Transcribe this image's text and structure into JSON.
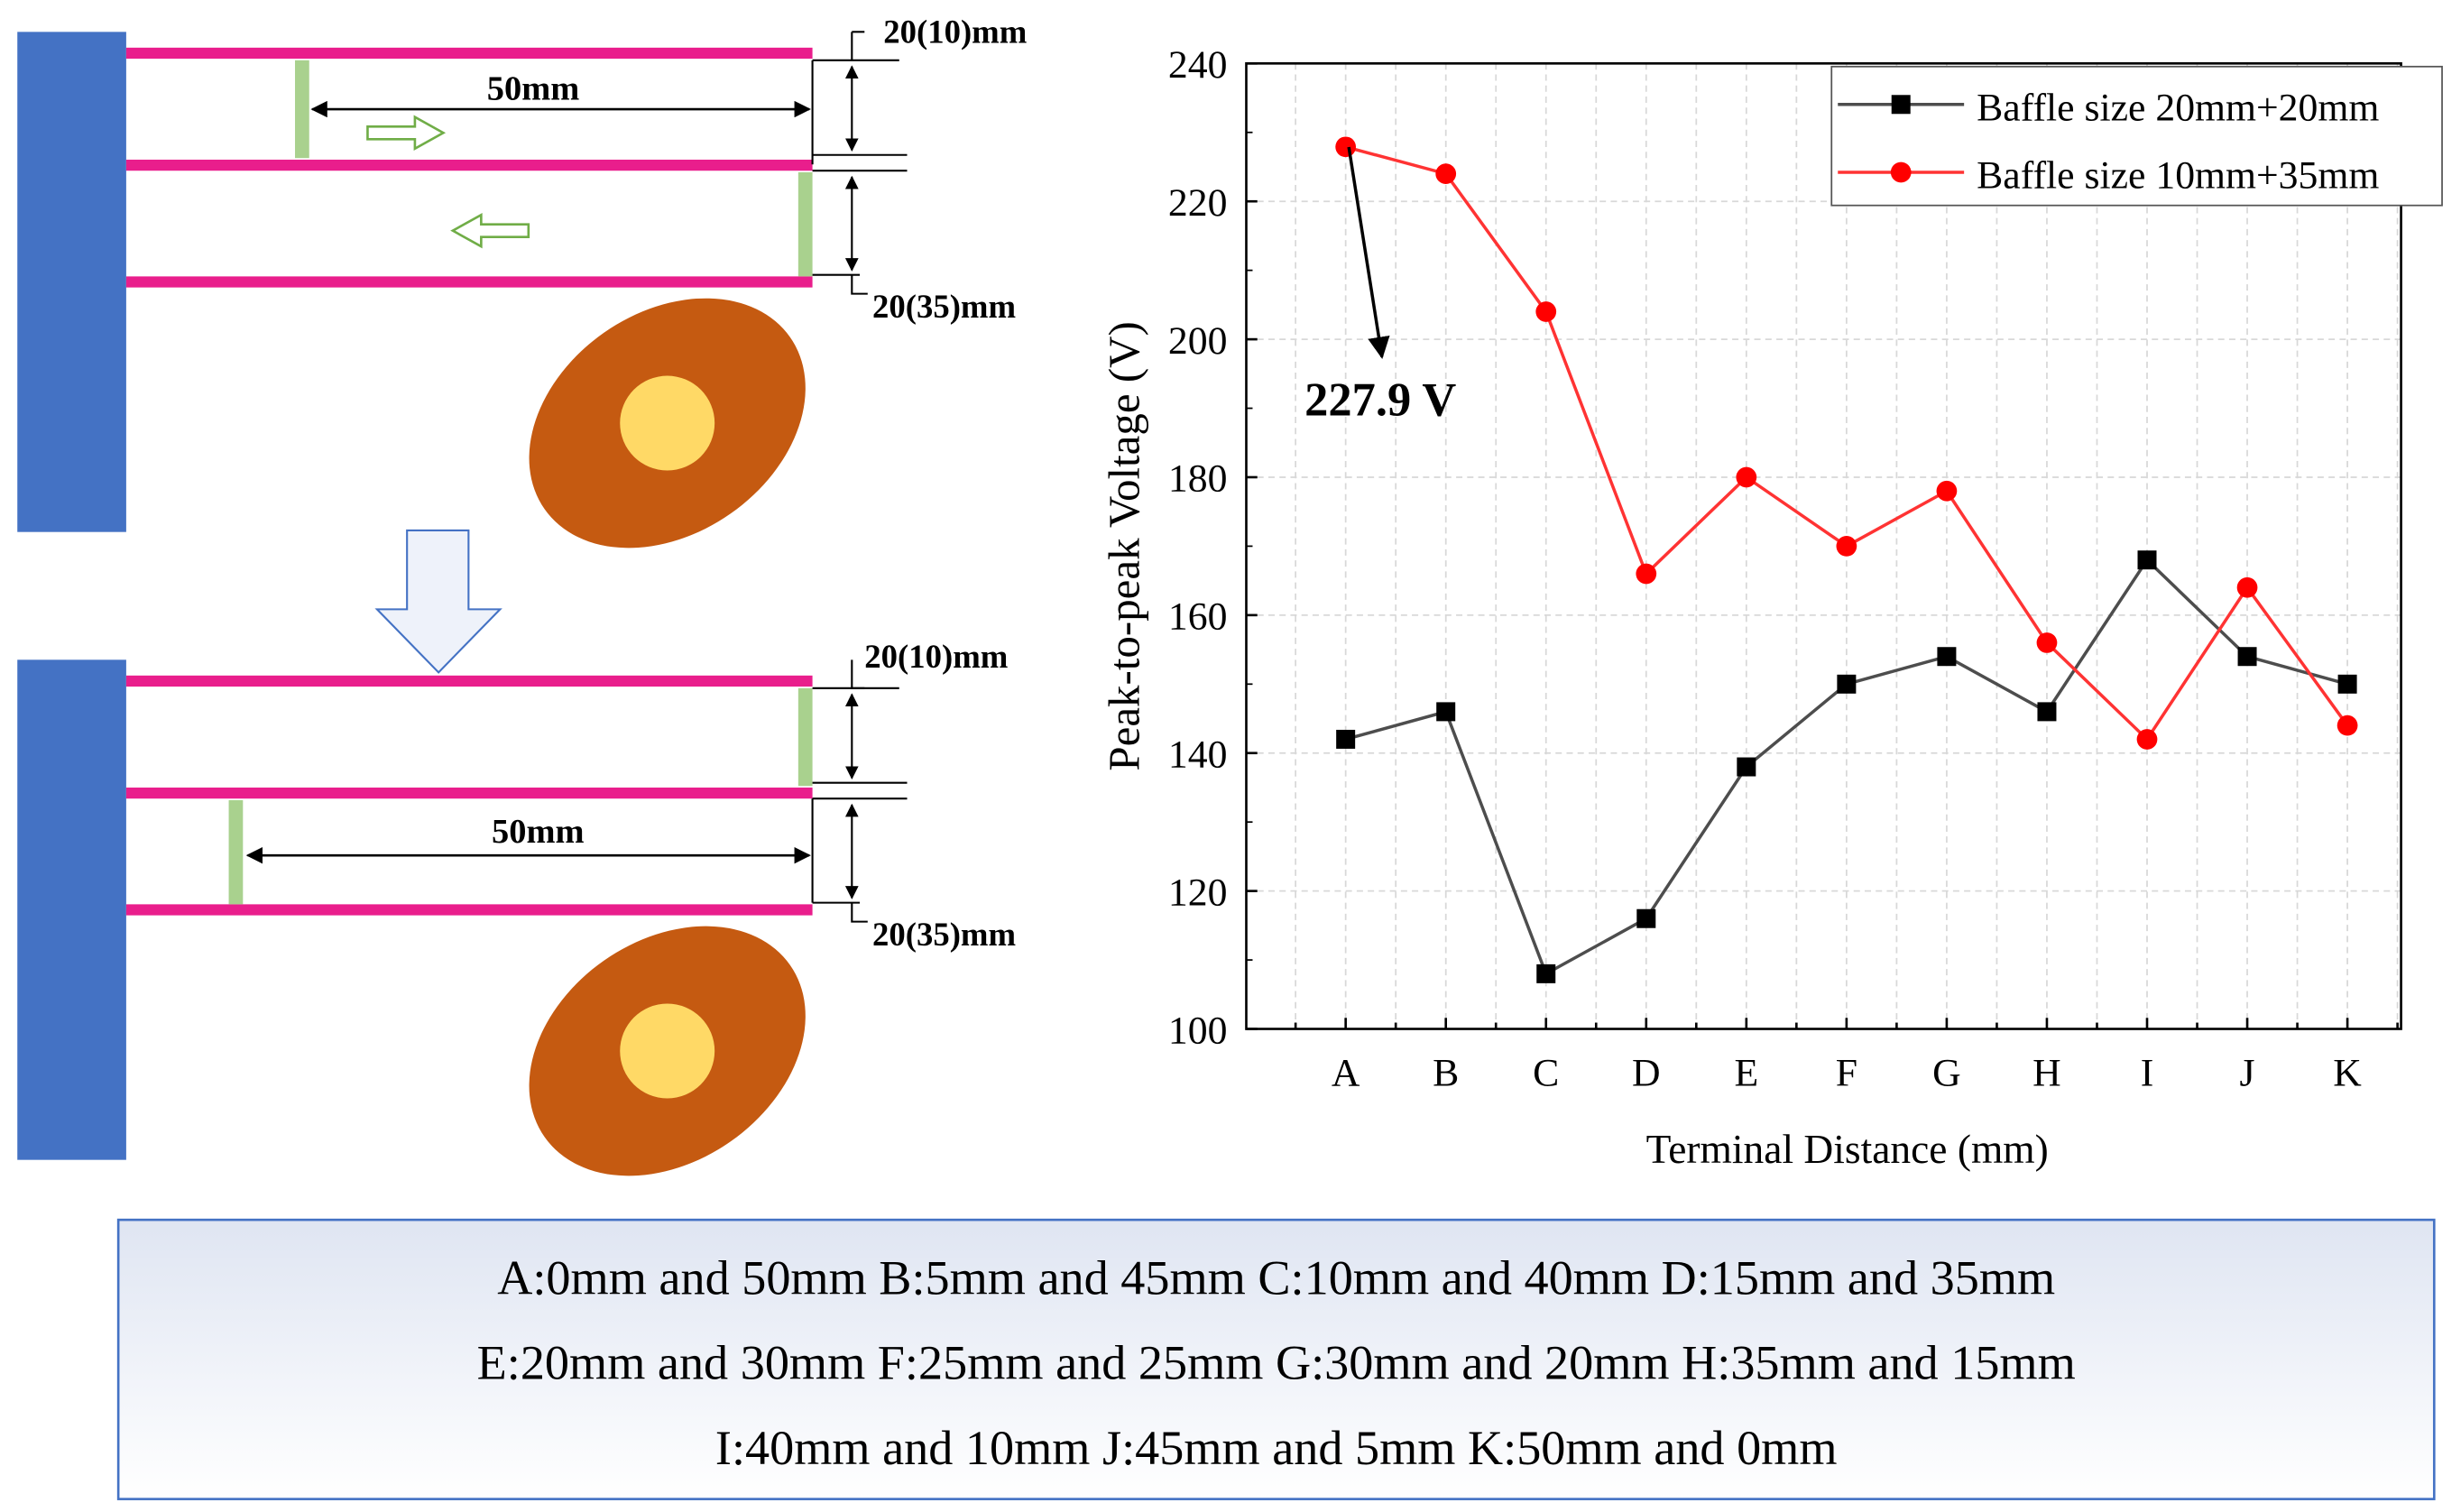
{
  "diagram": {
    "top": {
      "gap_label": "50mm",
      "upper_label": "20(10)mm",
      "lower_label": "20(35)mm"
    },
    "bottom": {
      "gap_label": "50mm",
      "upper_label": "20(10)mm",
      "lower_label": "20(35)mm"
    },
    "colors": {
      "wall": "#4472C4",
      "plate": "#E91E8C",
      "baffle": "#A9D18E",
      "ellipse": "#C55A11",
      "core": "#FFD966"
    }
  },
  "chart_data": {
    "type": "line",
    "categories": [
      "A",
      "B",
      "C",
      "D",
      "E",
      "F",
      "G",
      "H",
      "I",
      "J",
      "K"
    ],
    "series": [
      {
        "name": "Baffle size 20mm+20mm",
        "color": "#000000",
        "line_color": "#4d4d4d",
        "marker": "square",
        "values": [
          142,
          146,
          108,
          116,
          138,
          150,
          154,
          146,
          168,
          154,
          150
        ]
      },
      {
        "name": "Baffle size 10mm+35mm",
        "color": "#ff0000",
        "line_color": "#ff3333",
        "marker": "circle",
        "values": [
          227.9,
          224,
          204,
          166,
          180,
          170,
          178,
          156,
          142,
          164,
          144
        ]
      }
    ],
    "xlabel": "Terminal Distance (mm)",
    "ylabel": "Peak-to-peak Voltage (V)",
    "ylim": [
      100,
      240
    ],
    "yticks": [
      100,
      120,
      140,
      160,
      180,
      200,
      220,
      240
    ],
    "grid": true,
    "legend": "top-right",
    "annotation": "227.9 V"
  },
  "caption": {
    "lines": [
      "A:0mm and 50mm B:5mm and 45mm C:10mm and 40mm D:15mm and 35mm",
      "E:20mm and 30mm F:25mm and 25mm G:30mm and 20mm H:35mm and 15mm",
      "I:40mm and 10mm J:45mm and 5mm K:50mm and 0mm"
    ]
  }
}
